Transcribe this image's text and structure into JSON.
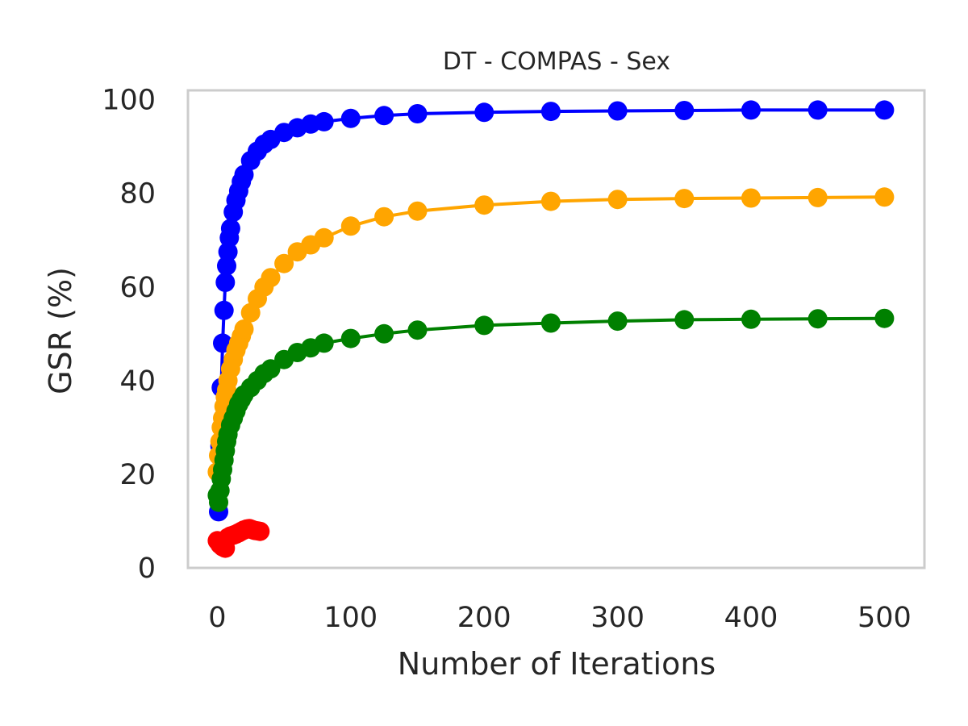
{
  "chart_data": {
    "type": "line",
    "title": "DT - COMPAS - Sex",
    "xlabel": "Number of Iterations",
    "ylabel": "GSR (%)",
    "xlim": [
      -22,
      530
    ],
    "ylim": [
      0,
      102
    ],
    "xticks": [
      0,
      100,
      200,
      300,
      400,
      500
    ],
    "yticks": [
      0,
      20,
      40,
      60,
      80,
      100
    ],
    "grid": false,
    "marker": "o",
    "series": [
      {
        "color": "#0000ff",
        "x": [
          1,
          2,
          3,
          4,
          5,
          6,
          7,
          8,
          9,
          10,
          12,
          14,
          16,
          18,
          20,
          25,
          30,
          35,
          40,
          50,
          60,
          70,
          80,
          100,
          125,
          150,
          200,
          250,
          300,
          350,
          400,
          450,
          500
        ],
        "y": [
          12,
          26,
          38.5,
          48,
          55,
          61,
          64.5,
          67.5,
          70.5,
          72.5,
          76,
          78.5,
          80.5,
          82.5,
          84,
          87,
          89,
          90.5,
          91.5,
          93,
          94,
          94.8,
          95.3,
          96,
          96.6,
          97,
          97.3,
          97.5,
          97.6,
          97.7,
          97.8,
          97.8,
          97.8
        ]
      },
      {
        "color": "#ffa500",
        "x": [
          0,
          1,
          2,
          3,
          4,
          5,
          6,
          7,
          8,
          10,
          12,
          14,
          16,
          18,
          20,
          25,
          30,
          35,
          40,
          50,
          60,
          70,
          80,
          100,
          125,
          150,
          200,
          250,
          300,
          350,
          400,
          450,
          500
        ],
        "y": [
          20.5,
          24,
          27,
          30,
          32,
          34.5,
          36.5,
          38,
          40,
          42.5,
          44.5,
          46.5,
          48,
          49.5,
          51,
          54.5,
          57.5,
          60,
          62,
          65,
          67.5,
          69,
          70.5,
          73,
          75,
          76.2,
          77.5,
          78.3,
          78.7,
          78.9,
          79,
          79.1,
          79.2
        ]
      },
      {
        "color": "#008000",
        "x": [
          0,
          1,
          2,
          3,
          4,
          5,
          6,
          7,
          8,
          10,
          12,
          14,
          16,
          18,
          20,
          25,
          30,
          35,
          40,
          50,
          60,
          70,
          80,
          100,
          125,
          150,
          200,
          250,
          300,
          350,
          400,
          450,
          500
        ],
        "y": [
          15.5,
          14,
          16.5,
          19,
          21,
          23,
          25,
          27,
          28.5,
          30.5,
          32,
          33.5,
          35,
          36,
          37,
          38.5,
          40,
          41.5,
          42.5,
          44.5,
          46,
          47,
          48,
          49,
          50,
          50.8,
          51.8,
          52.3,
          52.7,
          53,
          53.1,
          53.2,
          53.3
        ]
      },
      {
        "color": "#ff0000",
        "x": [
          0,
          2,
          4,
          6,
          8,
          10,
          12,
          14,
          16,
          18,
          20,
          22,
          24,
          26,
          28,
          30,
          32
        ],
        "y": [
          5.8,
          5,
          4.5,
          4.2,
          6.5,
          6.8,
          7,
          7.2,
          7.5,
          7.8,
          8.1,
          8.3,
          8.4,
          8.2,
          8,
          7.9,
          7.8
        ]
      }
    ]
  }
}
